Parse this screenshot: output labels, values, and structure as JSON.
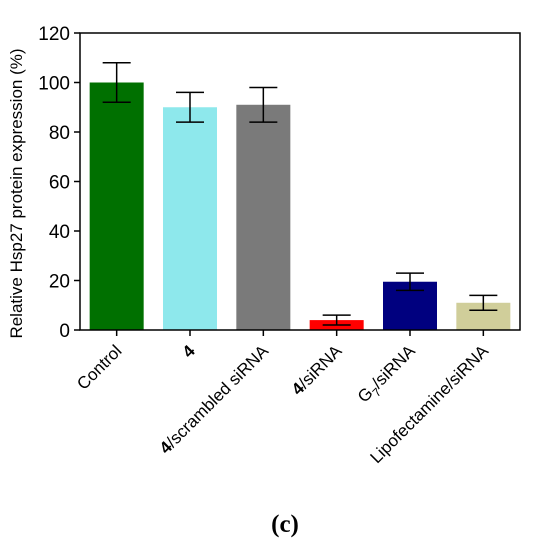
{
  "chart_data": {
    "type": "bar",
    "categories": [
      {
        "label": "Control",
        "bold_prefix": "",
        "rest": "Control"
      },
      {
        "label": "4",
        "bold_prefix": "4",
        "rest": ""
      },
      {
        "label": "4/scrambled siRNA",
        "bold_prefix": "4",
        "rest": "/scrambled siRNA"
      },
      {
        "label": "4/siRNA",
        "bold_prefix": "4",
        "rest": "/siRNA"
      },
      {
        "label": "G7/siRNA",
        "bold_prefix": "",
        "rest": "G",
        "subscript": "7",
        "suffix": "/siRNA"
      },
      {
        "label": "Lipofectamine/siRNA",
        "bold_prefix": "",
        "rest": "Lipofectamine/siRNA"
      }
    ],
    "values": [
      100,
      90,
      91,
      4,
      19.5,
      11
    ],
    "errors": [
      8,
      6,
      7,
      2,
      3.5,
      3
    ],
    "colors": [
      "#007000",
      "#8ee8ec",
      "#7a7a7a",
      "#ff0000",
      "#00007f",
      "#d0ce9a"
    ],
    "ylabel": "Relative Hsp27 protein expression (%)",
    "xlabel": "",
    "ylim": [
      0,
      120
    ],
    "yticks": [
      0,
      20,
      40,
      60,
      80,
      100,
      120
    ],
    "grid": false,
    "legend": "none"
  },
  "panel_label": "(c)"
}
